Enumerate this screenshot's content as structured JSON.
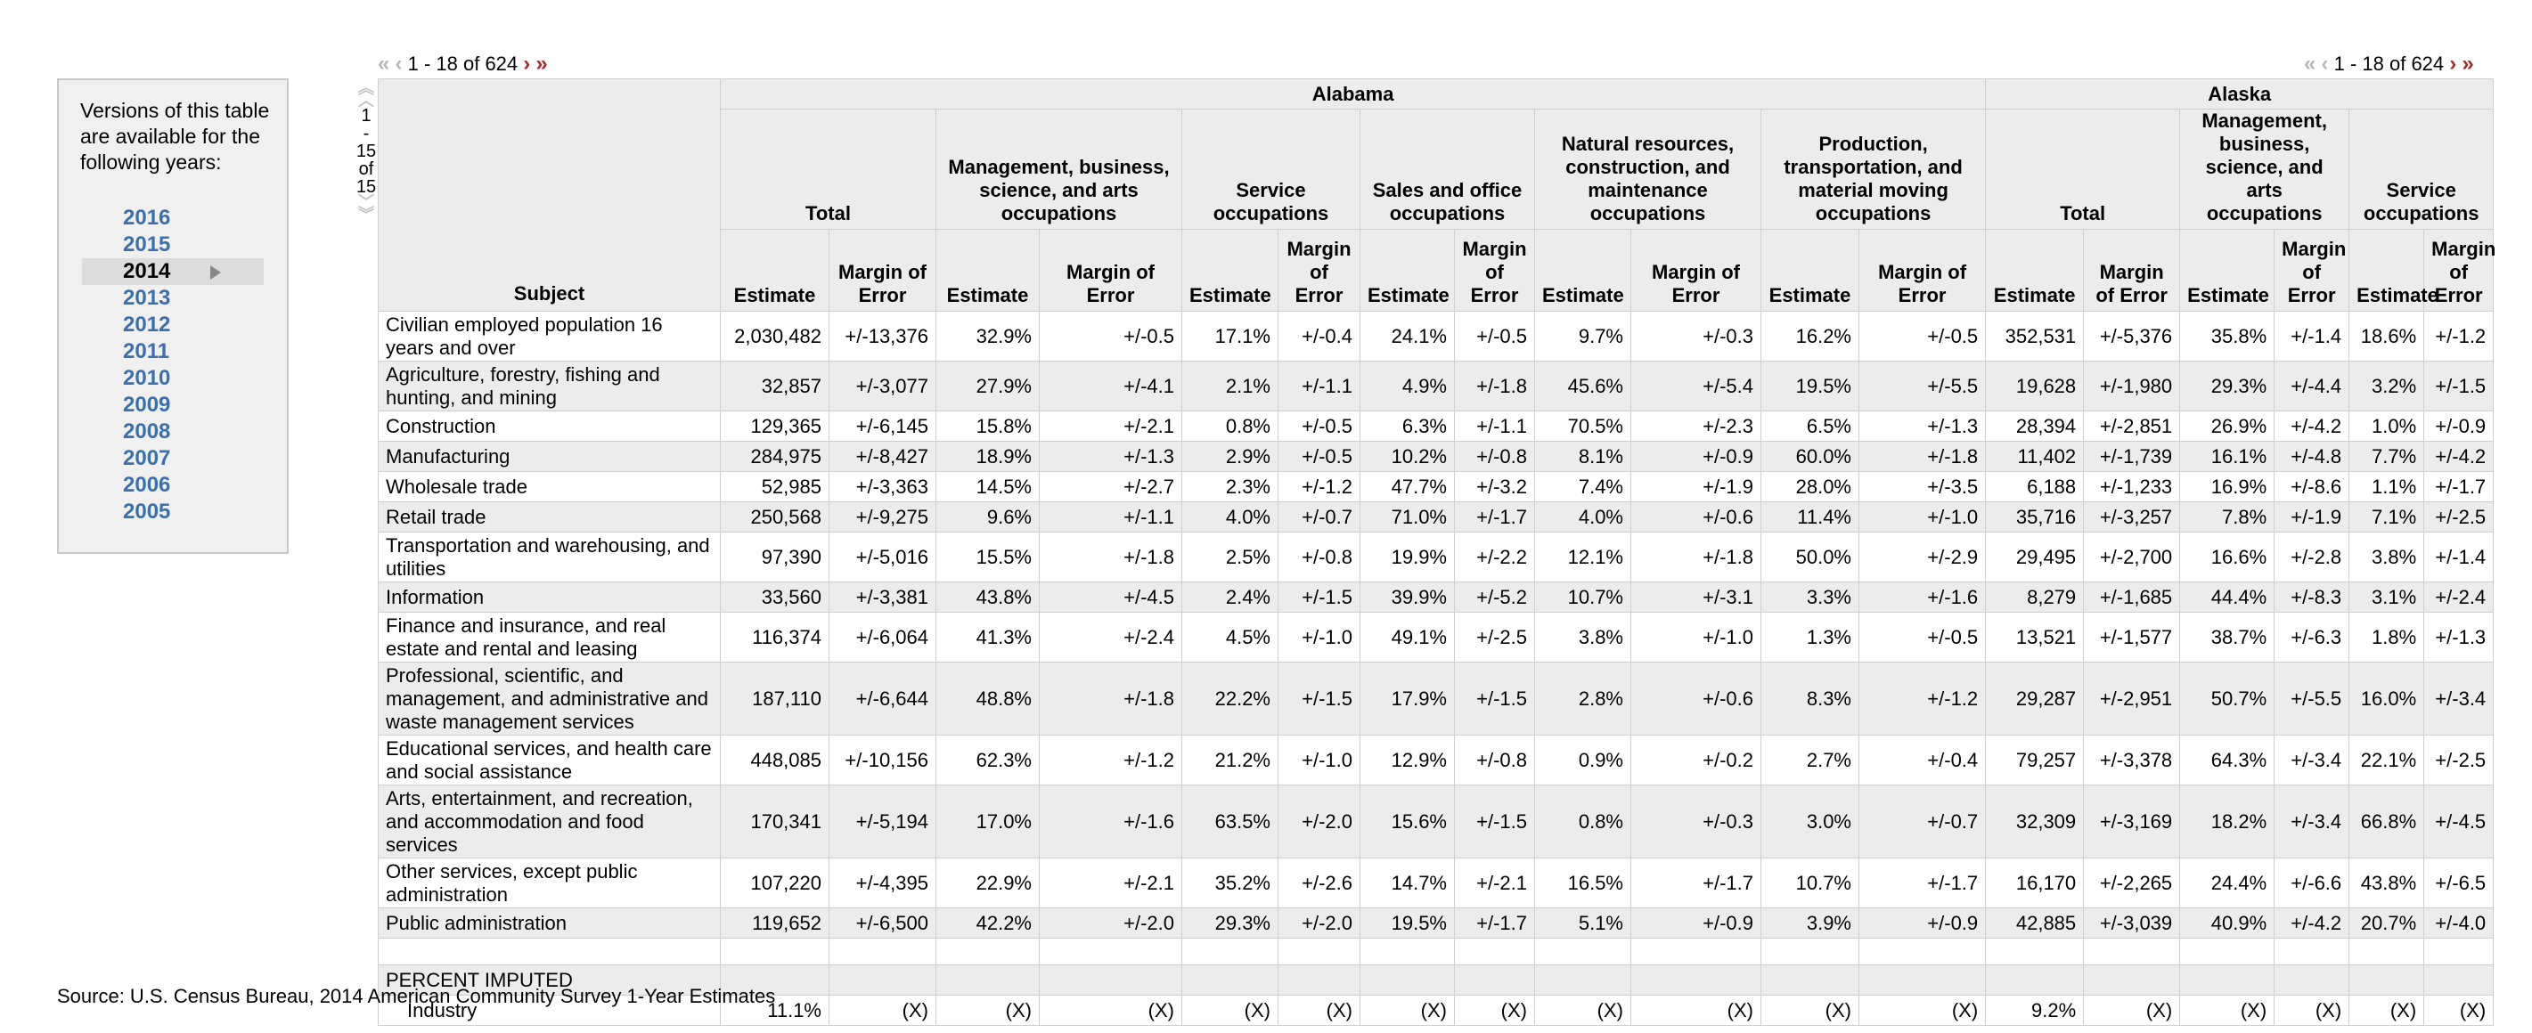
{
  "versions": {
    "title": "Versions of this table are available for the following years:",
    "years": [
      "2016",
      "2015",
      "2014",
      "2013",
      "2012",
      "2011",
      "2010",
      "2009",
      "2008",
      "2007",
      "2006",
      "2005"
    ],
    "current": "2014"
  },
  "pager": {
    "first": "«",
    "prev": "‹",
    "range_text": "1 - 18 of 624",
    "next": "›",
    "last": "»"
  },
  "vpager": {
    "line1": "1",
    "line2": "-",
    "line3": "15",
    "line4": "of",
    "line5": "15"
  },
  "table": {
    "subject_header": "Subject",
    "states": [
      {
        "name": "Alabama",
        "groups": [
          "Total",
          "Management, business, science, and arts occupations",
          "Service occupations",
          "Sales and office occupations",
          "Natural resources, construction, and maintenance occupations",
          "Production, transportation, and material moving occupations"
        ]
      },
      {
        "name": "Alaska",
        "groups": [
          "Total",
          "Management, business, science, and arts occupations",
          "Service occupations"
        ]
      }
    ],
    "col_estimate": "Estimate",
    "col_moe": "Margin of Error",
    "rows": [
      {
        "label": "Civilian employed population 16 years and over",
        "size": "h2",
        "cells": [
          "2,030,482",
          "+/-13,376",
          "32.9%",
          "+/-0.5",
          "17.1%",
          "+/-0.4",
          "24.1%",
          "+/-0.5",
          "9.7%",
          "+/-0.3",
          "16.2%",
          "+/-0.5",
          "352,531",
          "+/-5,376",
          "35.8%",
          "+/-1.4",
          "18.6%",
          "+/-1.2"
        ]
      },
      {
        "label": "Agriculture, forestry, fishing and hunting, and mining",
        "size": "h2",
        "cells": [
          "32,857",
          "+/-3,077",
          "27.9%",
          "+/-4.1",
          "2.1%",
          "+/-1.1",
          "4.9%",
          "+/-1.8",
          "45.6%",
          "+/-5.4",
          "19.5%",
          "+/-5.5",
          "19,628",
          "+/-1,980",
          "29.3%",
          "+/-4.4",
          "3.2%",
          "+/-1.5"
        ]
      },
      {
        "label": "Construction",
        "size": "h1",
        "cells": [
          "129,365",
          "+/-6,145",
          "15.8%",
          "+/-2.1",
          "0.8%",
          "+/-0.5",
          "6.3%",
          "+/-1.1",
          "70.5%",
          "+/-2.3",
          "6.5%",
          "+/-1.3",
          "28,394",
          "+/-2,851",
          "26.9%",
          "+/-4.2",
          "1.0%",
          "+/-0.9"
        ]
      },
      {
        "label": "Manufacturing",
        "size": "h1",
        "cells": [
          "284,975",
          "+/-8,427",
          "18.9%",
          "+/-1.3",
          "2.9%",
          "+/-0.5",
          "10.2%",
          "+/-0.8",
          "8.1%",
          "+/-0.9",
          "60.0%",
          "+/-1.8",
          "11,402",
          "+/-1,739",
          "16.1%",
          "+/-4.8",
          "7.7%",
          "+/-4.2"
        ]
      },
      {
        "label": "Wholesale trade",
        "size": "h1",
        "cells": [
          "52,985",
          "+/-3,363",
          "14.5%",
          "+/-2.7",
          "2.3%",
          "+/-1.2",
          "47.7%",
          "+/-3.2",
          "7.4%",
          "+/-1.9",
          "28.0%",
          "+/-3.5",
          "6,188",
          "+/-1,233",
          "16.9%",
          "+/-8.6",
          "1.1%",
          "+/-1.7"
        ]
      },
      {
        "label": "Retail trade",
        "size": "h1",
        "cells": [
          "250,568",
          "+/-9,275",
          "9.6%",
          "+/-1.1",
          "4.0%",
          "+/-0.7",
          "71.0%",
          "+/-1.7",
          "4.0%",
          "+/-0.6",
          "11.4%",
          "+/-1.0",
          "35,716",
          "+/-3,257",
          "7.8%",
          "+/-1.9",
          "7.1%",
          "+/-2.5"
        ]
      },
      {
        "label": "Transportation and warehousing, and utilities",
        "size": "h2",
        "cells": [
          "97,390",
          "+/-5,016",
          "15.5%",
          "+/-1.8",
          "2.5%",
          "+/-0.8",
          "19.9%",
          "+/-2.2",
          "12.1%",
          "+/-1.8",
          "50.0%",
          "+/-2.9",
          "29,495",
          "+/-2,700",
          "16.6%",
          "+/-2.8",
          "3.8%",
          "+/-1.4"
        ]
      },
      {
        "label": "Information",
        "size": "h1",
        "cells": [
          "33,560",
          "+/-3,381",
          "43.8%",
          "+/-4.5",
          "2.4%",
          "+/-1.5",
          "39.9%",
          "+/-5.2",
          "10.7%",
          "+/-3.1",
          "3.3%",
          "+/-1.6",
          "8,279",
          "+/-1,685",
          "44.4%",
          "+/-8.3",
          "3.1%",
          "+/-2.4"
        ]
      },
      {
        "label": "Finance and insurance, and real estate and rental and leasing",
        "size": "h2",
        "cells": [
          "116,374",
          "+/-6,064",
          "41.3%",
          "+/-2.4",
          "4.5%",
          "+/-1.0",
          "49.1%",
          "+/-2.5",
          "3.8%",
          "+/-1.0",
          "1.3%",
          "+/-0.5",
          "13,521",
          "+/-1,577",
          "38.7%",
          "+/-6.3",
          "1.8%",
          "+/-1.3"
        ]
      },
      {
        "label": "Professional, scientific, and management, and administrative and waste management services",
        "size": "h3",
        "cells": [
          "187,110",
          "+/-6,644",
          "48.8%",
          "+/-1.8",
          "22.2%",
          "+/-1.5",
          "17.9%",
          "+/-1.5",
          "2.8%",
          "+/-0.6",
          "8.3%",
          "+/-1.2",
          "29,287",
          "+/-2,951",
          "50.7%",
          "+/-5.5",
          "16.0%",
          "+/-3.4"
        ]
      },
      {
        "label": "Educational services, and health care and social assistance",
        "size": "h2",
        "cells": [
          "448,085",
          "+/-10,156",
          "62.3%",
          "+/-1.2",
          "21.2%",
          "+/-1.0",
          "12.9%",
          "+/-0.8",
          "0.9%",
          "+/-0.2",
          "2.7%",
          "+/-0.4",
          "79,257",
          "+/-3,378",
          "64.3%",
          "+/-3.4",
          "22.1%",
          "+/-2.5"
        ]
      },
      {
        "label": "Arts, entertainment, and recreation, and accommodation and food services",
        "size": "h3",
        "cells": [
          "170,341",
          "+/-5,194",
          "17.0%",
          "+/-1.6",
          "63.5%",
          "+/-2.0",
          "15.6%",
          "+/-1.5",
          "0.8%",
          "+/-0.3",
          "3.0%",
          "+/-0.7",
          "32,309",
          "+/-3,169",
          "18.2%",
          "+/-3.4",
          "66.8%",
          "+/-4.5"
        ]
      },
      {
        "label": "Other services, except public administration",
        "size": "h2",
        "cells": [
          "107,220",
          "+/-4,395",
          "22.9%",
          "+/-2.1",
          "35.2%",
          "+/-2.6",
          "14.7%",
          "+/-2.1",
          "16.5%",
          "+/-1.7",
          "10.7%",
          "+/-1.7",
          "16,170",
          "+/-2,265",
          "24.4%",
          "+/-6.6",
          "43.8%",
          "+/-6.5"
        ]
      },
      {
        "label": "Public administration",
        "size": "h1",
        "cells": [
          "119,652",
          "+/-6,500",
          "42.2%",
          "+/-2.0",
          "29.3%",
          "+/-2.0",
          "19.5%",
          "+/-1.7",
          "5.1%",
          "+/-0.9",
          "3.9%",
          "+/-0.9",
          "42,885",
          "+/-3,039",
          "40.9%",
          "+/-4.2",
          "20.7%",
          "+/-4.0"
        ]
      }
    ],
    "imputed_header": "PERCENT IMPUTED",
    "imputed_row": {
      "label": "Industry",
      "cells": [
        "11.1%",
        "(X)",
        "(X)",
        "(X)",
        "(X)",
        "(X)",
        "(X)",
        "(X)",
        "(X)",
        "(X)",
        "(X)",
        "(X)",
        "9.2%",
        "(X)",
        "(X)",
        "(X)",
        "(X)",
        "(X)"
      ]
    }
  },
  "source": "Source: U.S. Census Bureau, 2014 American Community Survey 1-Year Estimates",
  "colors": {
    "link_blue": "#3a6fb0",
    "header_gray": "#ececec",
    "pager_red": "#a52a2a"
  }
}
